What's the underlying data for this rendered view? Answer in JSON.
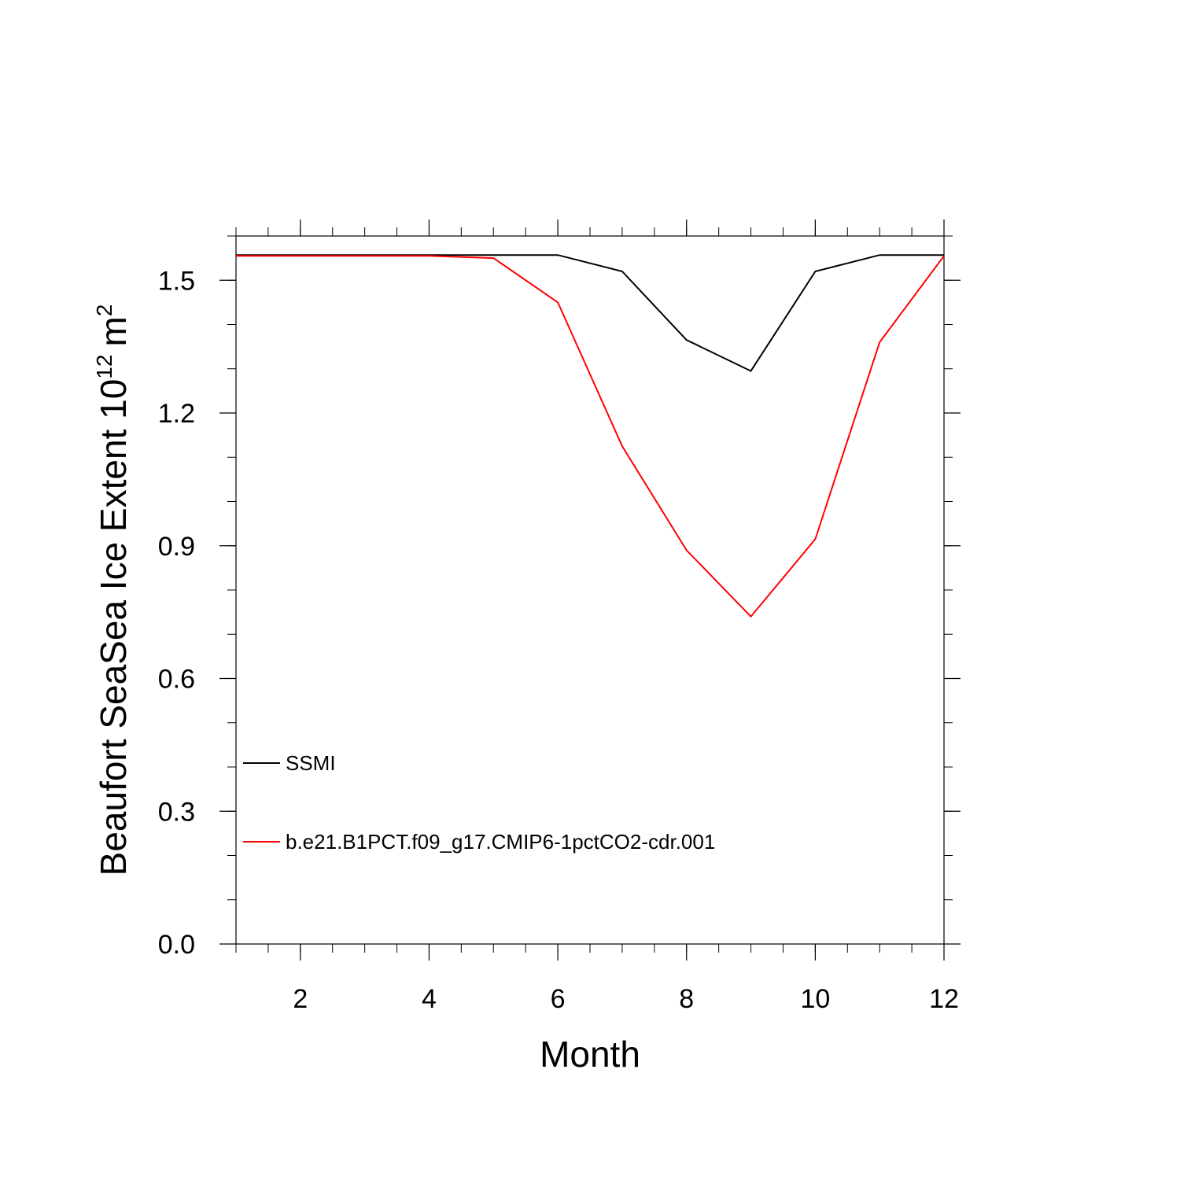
{
  "chart_data": {
    "type": "line",
    "title": "",
    "xlabel": "Month",
    "ylabel": "Beaufort SeaSea Ice Extent 10",
    "ylabel_exponent": "12",
    "ylabel_unit": "m",
    "ylabel_unit_exponent": "2",
    "xlim": [
      1,
      12
    ],
    "ylim": [
      0.0,
      1.6
    ],
    "x_ticks": [
      2,
      4,
      6,
      8,
      10,
      12
    ],
    "x_tick_labels": [
      "2",
      "4",
      "6",
      "8",
      "10",
      "12"
    ],
    "y_ticks": [
      0.0,
      0.3,
      0.6,
      0.9,
      1.2,
      1.5
    ],
    "y_tick_labels": [
      "0.0",
      "0.3",
      "0.6",
      "0.9",
      "1.2",
      "1.5"
    ],
    "grid": false,
    "legend_position": "lower-left",
    "x": [
      1,
      2,
      3,
      4,
      5,
      6,
      7,
      8,
      9,
      10,
      11,
      12
    ],
    "series": [
      {
        "name": "SSMI",
        "color": "#000000",
        "values": [
          1.557,
          1.557,
          1.557,
          1.557,
          1.557,
          1.557,
          1.52,
          1.365,
          1.295,
          1.52,
          1.557,
          1.557
        ]
      },
      {
        "name": "b.e21.B1PCT.f09_g17.CMIP6-1pctCO2-cdr.001",
        "color": "#ff0000",
        "values": [
          1.555,
          1.555,
          1.555,
          1.555,
          1.55,
          1.45,
          1.125,
          0.89,
          0.74,
          0.915,
          1.36,
          1.555
        ]
      }
    ]
  }
}
